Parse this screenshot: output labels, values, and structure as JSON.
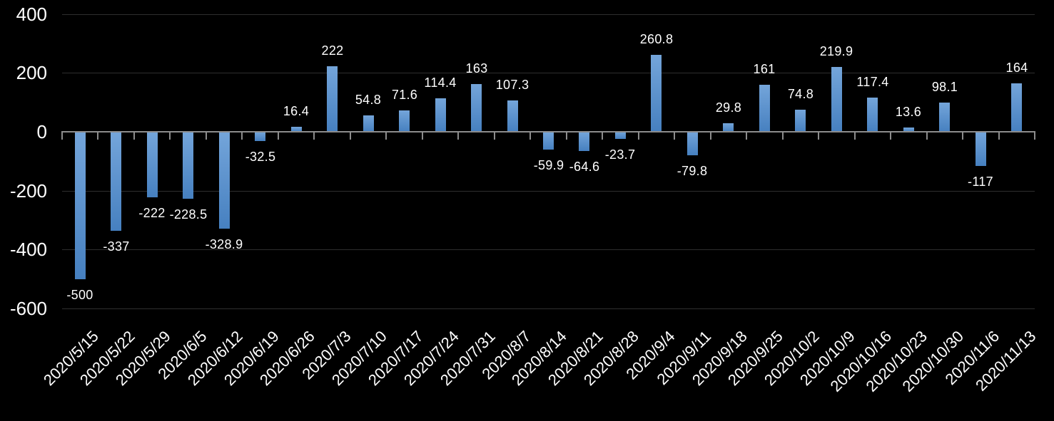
{
  "chart_data": {
    "type": "bar",
    "categories": [
      "2020/5/15",
      "2020/5/22",
      "2020/5/29",
      "2020/6/5",
      "2020/6/12",
      "2020/6/19",
      "2020/6/26",
      "2020/7/3",
      "2020/7/10",
      "2020/7/17",
      "2020/7/24",
      "2020/7/31",
      "2020/8/7",
      "2020/8/14",
      "2020/8/21",
      "2020/8/28",
      "2020/9/4",
      "2020/9/11",
      "2020/9/18",
      "2020/9/25",
      "2020/10/2",
      "2020/10/9",
      "2020/10/16",
      "2020/10/23",
      "2020/10/30",
      "2020/11/6",
      "2020/11/13"
    ],
    "values": [
      -500,
      -337,
      -222,
      -228.5,
      -328.9,
      -32.5,
      16.4,
      222,
      54.8,
      71.6,
      114.4,
      163,
      107.3,
      -59.9,
      -64.6,
      -23.7,
      260.8,
      -79.8,
      29.8,
      161,
      74.8,
      219.9,
      117.4,
      13.6,
      98.1,
      -117,
      164
    ],
    "data_labels": [
      "-500",
      "-337",
      "-222",
      "-228.5",
      "-328.9",
      "-32.5",
      "16.4",
      "222",
      "54.8",
      "71.6",
      "114.4",
      "163",
      "107.3",
      "-59.9",
      "-64.6",
      "-23.7",
      "260.8",
      "-79.8",
      "29.8",
      "161",
      "74.8",
      "219.9",
      "117.4",
      "13.6",
      "98.1",
      "-117",
      "164"
    ],
    "y_ticks": [
      400,
      200,
      0,
      -200,
      -400,
      -600
    ],
    "y_tick_labels": [
      "400",
      "200",
      "0",
      "-200",
      "-400",
      "-600"
    ],
    "ylim": [
      -600,
      400
    ],
    "xlabel": "",
    "ylabel": "",
    "grid": true,
    "legend": false,
    "x_label_rotation_deg": 45,
    "colors": {
      "background": "#000000",
      "bar_gradient_top": "#74A5DA",
      "bar_gradient_bottom": "#4680C0",
      "axis": "#8C8C8C",
      "gridline": "#2E2E2E",
      "text": "#FFFFFF"
    }
  }
}
